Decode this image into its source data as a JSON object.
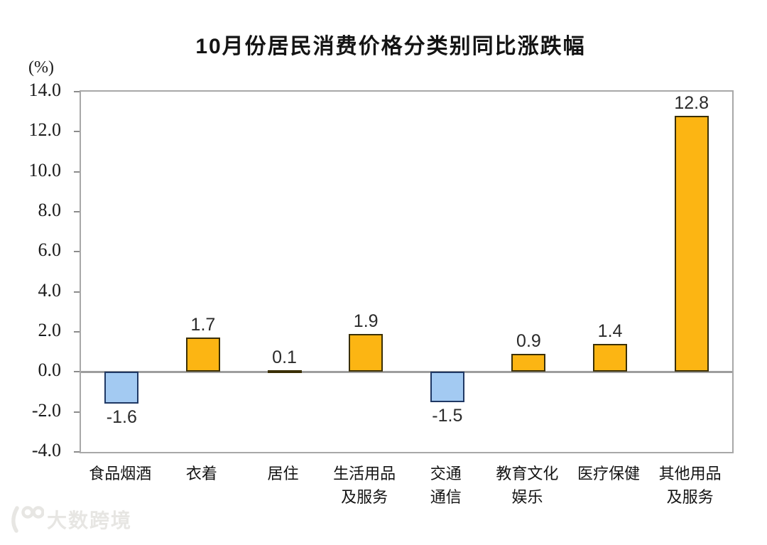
{
  "chart_data": {
    "type": "bar",
    "title": "10月份居民消费价格分类别同比涨跌幅",
    "unit_label": "(%)",
    "categories": [
      "食品烟酒",
      "衣着",
      "居住",
      "生活用品\n及服务",
      "交通\n通信",
      "教育文化\n娱乐",
      "医疗保健",
      "其他用品\n及服务"
    ],
    "values": [
      -1.6,
      1.7,
      0.1,
      1.9,
      -1.5,
      0.9,
      1.4,
      12.8
    ],
    "ylim": [
      -4.0,
      14.0
    ],
    "ytick_step": 2.0,
    "ytick_labels": [
      "14.0",
      "12.0",
      "10.0",
      "8.0",
      "6.0",
      "4.0",
      "2.0",
      "0.0",
      "-2.0",
      "-4.0"
    ],
    "grid": false,
    "legend_position": "none",
    "colors": {
      "positive_bar": "#FCB513",
      "negative_bar": "#A3CAF2",
      "positive_bar_border": "#3A2F05",
      "negative_bar_border": "#1F3864",
      "axis_frame": "#A8A8A8",
      "zero_line": "#9E9E9E",
      "text": "#141414"
    }
  },
  "watermark": {
    "text": "大数跨境"
  }
}
